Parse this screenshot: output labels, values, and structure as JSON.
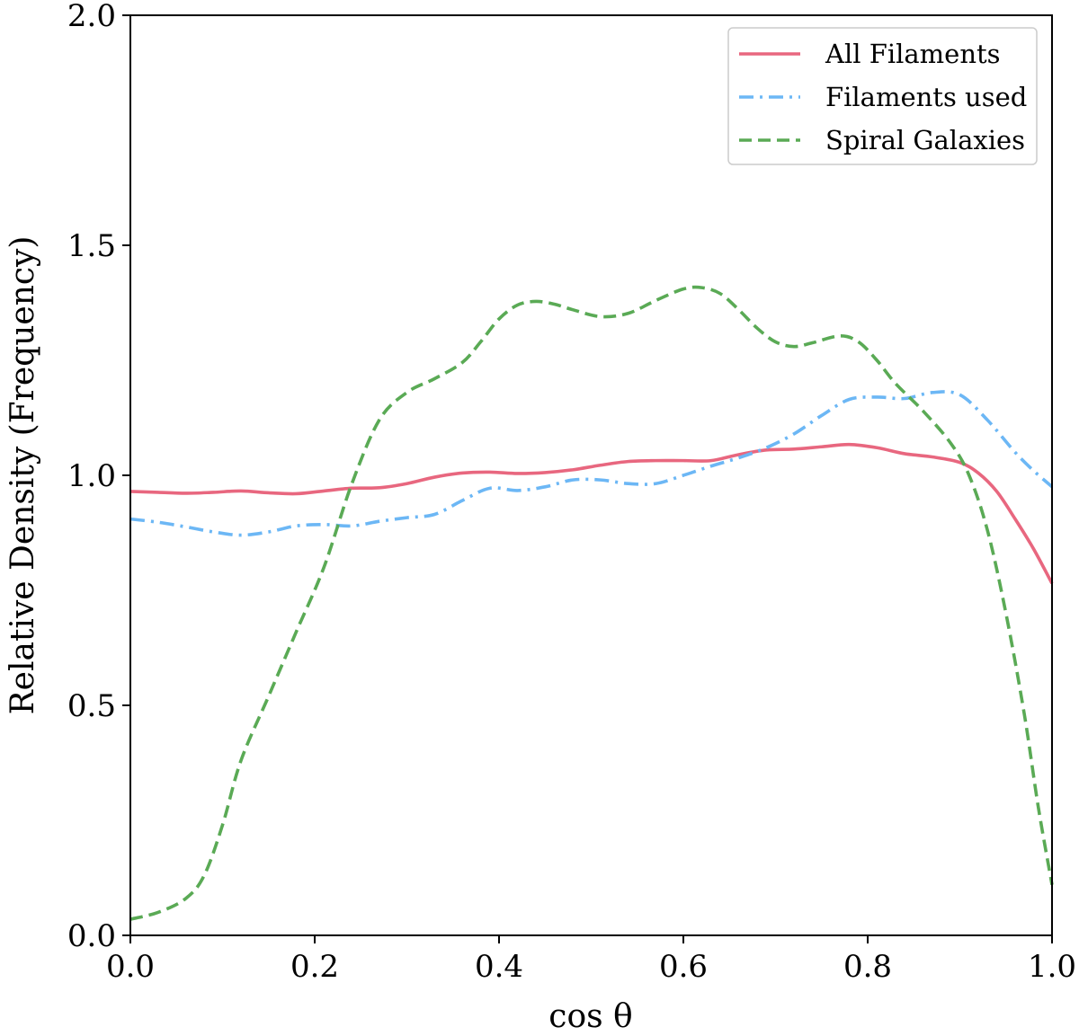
{
  "chart_data": {
    "type": "line",
    "title": "",
    "xlabel": "cos θ",
    "ylabel": "Relative Density (Frequency)",
    "xlim": [
      0.0,
      1.0
    ],
    "ylim": [
      0.0,
      2.0
    ],
    "xticks": [
      "0.0",
      "0.2",
      "0.4",
      "0.6",
      "0.8",
      "1.0"
    ],
    "yticks": [
      "0.0",
      "0.5",
      "1.0",
      "1.5",
      "2.0"
    ],
    "grid": false,
    "legend_position": "top-right",
    "series": [
      {
        "name": "All Filaments",
        "color": "#e8677f",
        "style": "solid",
        "x": [
          0.0,
          0.03,
          0.06,
          0.09,
          0.12,
          0.15,
          0.18,
          0.21,
          0.24,
          0.27,
          0.3,
          0.33,
          0.36,
          0.39,
          0.42,
          0.45,
          0.48,
          0.51,
          0.54,
          0.57,
          0.6,
          0.63,
          0.66,
          0.69,
          0.72,
          0.75,
          0.78,
          0.81,
          0.84,
          0.87,
          0.9,
          0.92,
          0.94,
          0.96,
          0.98,
          1.0
        ],
        "y": [
          0.965,
          0.963,
          0.961,
          0.963,
          0.966,
          0.962,
          0.96,
          0.966,
          0.972,
          0.973,
          0.982,
          0.996,
          1.005,
          1.007,
          1.004,
          1.006,
          1.012,
          1.022,
          1.03,
          1.032,
          1.032,
          1.032,
          1.045,
          1.055,
          1.057,
          1.062,
          1.067,
          1.06,
          1.047,
          1.04,
          1.028,
          1.005,
          0.965,
          0.905,
          0.84,
          0.765
        ]
      },
      {
        "name": "Filaments used",
        "color": "#6cb7f5",
        "style": "dashdot",
        "x": [
          0.0,
          0.03,
          0.06,
          0.09,
          0.12,
          0.15,
          0.18,
          0.21,
          0.24,
          0.27,
          0.3,
          0.33,
          0.36,
          0.39,
          0.42,
          0.45,
          0.48,
          0.51,
          0.54,
          0.57,
          0.6,
          0.63,
          0.66,
          0.69,
          0.72,
          0.75,
          0.78,
          0.81,
          0.84,
          0.87,
          0.9,
          0.93,
          0.96,
          0.98,
          1.0
        ],
        "y": [
          0.905,
          0.898,
          0.888,
          0.877,
          0.87,
          0.877,
          0.89,
          0.893,
          0.89,
          0.9,
          0.908,
          0.915,
          0.945,
          0.972,
          0.967,
          0.975,
          0.99,
          0.99,
          0.982,
          0.982,
          1.0,
          1.02,
          1.038,
          1.06,
          1.09,
          1.13,
          1.165,
          1.17,
          1.167,
          1.18,
          1.175,
          1.12,
          1.05,
          1.01,
          0.975
        ]
      },
      {
        "name": "Spiral Galaxies",
        "color": "#5aaa55",
        "style": "dashed",
        "x": [
          0.0,
          0.03,
          0.06,
          0.08,
          0.1,
          0.12,
          0.15,
          0.18,
          0.21,
          0.24,
          0.27,
          0.3,
          0.33,
          0.36,
          0.38,
          0.4,
          0.42,
          0.44,
          0.46,
          0.48,
          0.51,
          0.54,
          0.57,
          0.6,
          0.62,
          0.64,
          0.66,
          0.68,
          0.7,
          0.72,
          0.74,
          0.77,
          0.79,
          0.81,
          0.83,
          0.86,
          0.89,
          0.91,
          0.93,
          0.95,
          0.97,
          0.985,
          1.0
        ],
        "y": [
          0.035,
          0.05,
          0.08,
          0.13,
          0.24,
          0.38,
          0.52,
          0.66,
          0.8,
          0.98,
          1.12,
          1.18,
          1.21,
          1.245,
          1.29,
          1.34,
          1.37,
          1.378,
          1.372,
          1.36,
          1.345,
          1.352,
          1.38,
          1.405,
          1.408,
          1.395,
          1.36,
          1.32,
          1.29,
          1.28,
          1.288,
          1.303,
          1.29,
          1.25,
          1.2,
          1.14,
          1.07,
          1.0,
          0.88,
          0.7,
          0.48,
          0.28,
          0.11
        ]
      }
    ]
  }
}
